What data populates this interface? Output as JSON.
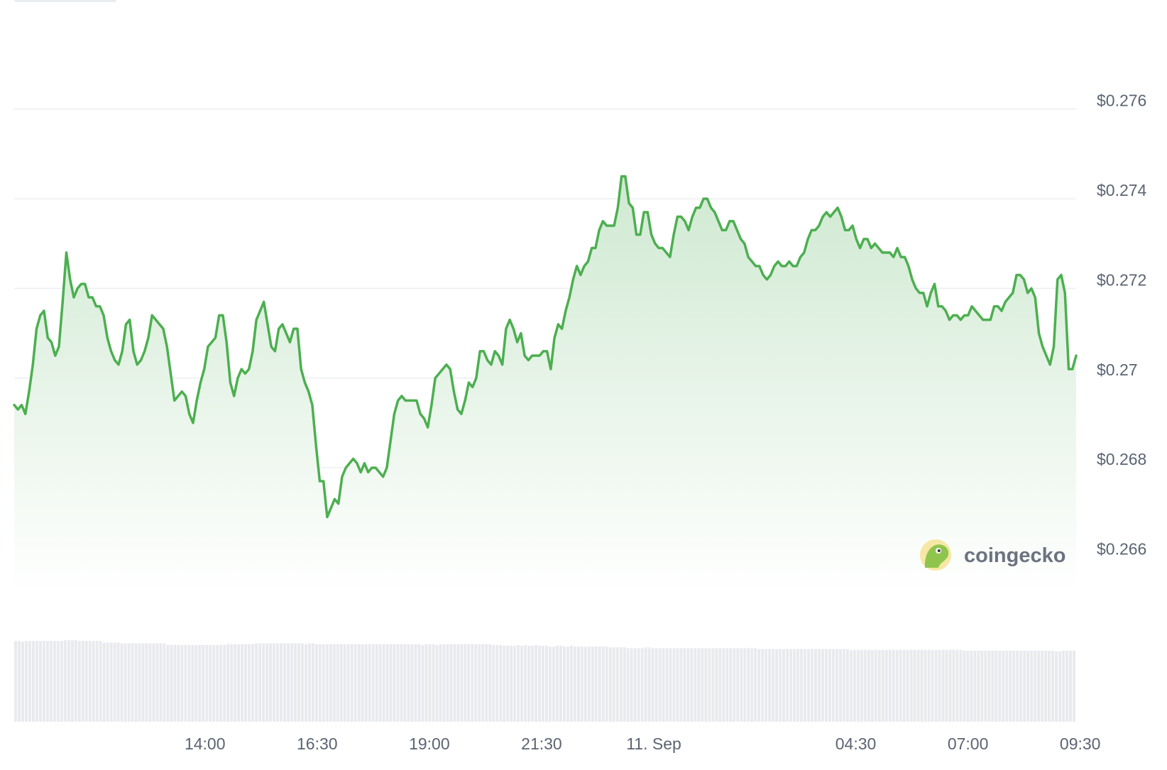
{
  "chart_data": {
    "type": "area",
    "title": "",
    "xlabel": "",
    "ylabel": "",
    "ylim": [
      0.2652,
      0.2778
    ],
    "y_ticks": [
      {
        "value": 0.276,
        "label": "$0.276"
      },
      {
        "value": 0.274,
        "label": "$0.274"
      },
      {
        "value": 0.272,
        "label": "$0.272"
      },
      {
        "value": 0.27,
        "label": "$0.27"
      },
      {
        "value": 0.268,
        "label": "$0.268"
      },
      {
        "value": 0.266,
        "label": "$0.266"
      }
    ],
    "x_ticks": [
      {
        "t": 14.0,
        "label": "14:00"
      },
      {
        "t": 16.5,
        "label": "16:30"
      },
      {
        "t": 19.0,
        "label": "19:00"
      },
      {
        "t": 21.5,
        "label": "21:30"
      },
      {
        "t": 24.0,
        "label": "11. Sep"
      },
      {
        "t": 28.5,
        "label": "04:30"
      },
      {
        "t": 31.0,
        "label": "07:00"
      },
      {
        "t": 33.5,
        "label": "09:30"
      }
    ],
    "x_range_hours": [
      9.75,
      33.41
    ],
    "grid": true,
    "legend": "none",
    "colors": {
      "line": "#4caf50",
      "fill_top": "#cfe9d1",
      "fill_bottom": "#ffffff",
      "grid": "#eceef1",
      "volume": "#e8eaed"
    },
    "series": [
      {
        "values": [
          0.2694,
          0.2693,
          0.2694,
          0.2692,
          0.2697,
          0.2703,
          0.2711,
          0.2714,
          0.2715,
          0.2709,
          0.2708,
          0.2705,
          0.2707,
          0.2717,
          0.2728,
          0.2722,
          0.2718,
          0.272,
          0.2721,
          0.2721,
          0.2718,
          0.2718,
          0.2716,
          0.2716,
          0.2714,
          0.2709,
          0.2706,
          0.2704,
          0.2703,
          0.2706,
          0.2712,
          0.2713,
          0.2706,
          0.2703,
          0.2704,
          0.2706,
          0.2709,
          0.2714,
          0.2713,
          0.2712,
          0.2711,
          0.2707,
          0.2701,
          0.2695,
          0.2696,
          0.2697,
          0.2696,
          0.2692,
          0.269,
          0.2695,
          0.2699,
          0.2702,
          0.2707,
          0.2708,
          0.2709,
          0.2714,
          0.2714,
          0.2708,
          0.2699,
          0.2696,
          0.27,
          0.2702,
          0.2701,
          0.2702,
          0.2706,
          0.2713,
          0.2715,
          0.2717,
          0.2712,
          0.2707,
          0.2706,
          0.2711,
          0.2712,
          0.271,
          0.2708,
          0.2711,
          0.2711,
          0.2702,
          0.2699,
          0.2697,
          0.2694,
          0.2685,
          0.2677,
          0.2677,
          0.2669,
          0.2671,
          0.2673,
          0.2672,
          0.2678,
          0.268,
          0.2681,
          0.2682,
          0.2681,
          0.2679,
          0.2681,
          0.2679,
          0.268,
          0.268,
          0.2679,
          0.2678,
          0.268,
          0.2686,
          0.2692,
          0.2695,
          0.2696,
          0.2695,
          0.2695,
          0.2695,
          0.2695,
          0.2692,
          0.2691,
          0.2689,
          0.2694,
          0.27,
          0.2701,
          0.2702,
          0.2703,
          0.2702,
          0.2697,
          0.2693,
          0.2692,
          0.2695,
          0.2699,
          0.2698,
          0.27,
          0.2706,
          0.2706,
          0.2704,
          0.2703,
          0.2706,
          0.2705,
          0.2703,
          0.2711,
          0.2713,
          0.2711,
          0.2708,
          0.271,
          0.2705,
          0.2704,
          0.2705,
          0.2705,
          0.2705,
          0.2706,
          0.2706,
          0.2702,
          0.2709,
          0.2712,
          0.2711,
          0.2715,
          0.2718,
          0.2722,
          0.2725,
          0.2723,
          0.2725,
          0.2726,
          0.2729,
          0.2729,
          0.2733,
          0.2735,
          0.2734,
          0.2734,
          0.2734,
          0.2738,
          0.2745,
          0.2745,
          0.2739,
          0.2738,
          0.2732,
          0.2732,
          0.2737,
          0.2737,
          0.2732,
          0.273,
          0.2729,
          0.2729,
          0.2728,
          0.2727,
          0.2732,
          0.2736,
          0.2736,
          0.2735,
          0.2733,
          0.2736,
          0.2738,
          0.2738,
          0.274,
          0.274,
          0.2738,
          0.2737,
          0.2735,
          0.2733,
          0.2733,
          0.2735,
          0.2735,
          0.2733,
          0.2731,
          0.273,
          0.2727,
          0.2726,
          0.2725,
          0.2725,
          0.2723,
          0.2722,
          0.2723,
          0.2725,
          0.2726,
          0.2725,
          0.2725,
          0.2726,
          0.2725,
          0.2725,
          0.2727,
          0.2728,
          0.2731,
          0.2733,
          0.2733,
          0.2734,
          0.2736,
          0.2737,
          0.2736,
          0.2737,
          0.2738,
          0.2736,
          0.2733,
          0.2733,
          0.2734,
          0.2731,
          0.2729,
          0.2731,
          0.2731,
          0.2729,
          0.273,
          0.2729,
          0.2728,
          0.2728,
          0.2728,
          0.2727,
          0.2729,
          0.2727,
          0.2727,
          0.2725,
          0.2722,
          0.272,
          0.2719,
          0.2719,
          0.2716,
          0.2719,
          0.2721,
          0.2716,
          0.2716,
          0.2715,
          0.2713,
          0.2714,
          0.2714,
          0.2713,
          0.2714,
          0.2714,
          0.2716,
          0.2715,
          0.2714,
          0.2713,
          0.2713,
          0.2713,
          0.2716,
          0.2716,
          0.2715,
          0.2717,
          0.2718,
          0.2719,
          0.2723,
          0.2723,
          0.2722,
          0.2719,
          0.272,
          0.2718,
          0.271,
          0.2707,
          0.2705,
          0.2703,
          0.2707,
          0.2722,
          0.2723,
          0.2719,
          0.2702,
          0.2702,
          0.2705
        ]
      }
    ],
    "volume": {
      "values": [
        100,
        100,
        99,
        100,
        100,
        100,
        100,
        100,
        100,
        100,
        100,
        100,
        100,
        100,
        101,
        101,
        101,
        101,
        100,
        100,
        100,
        100,
        100,
        100,
        100,
        98,
        98,
        98,
        98,
        98,
        97,
        97,
        97,
        97,
        97,
        97,
        97,
        97,
        97,
        97,
        97,
        97,
        97,
        95,
        95,
        95,
        95,
        95,
        95,
        95,
        95,
        95,
        95,
        95,
        95,
        95,
        95,
        95,
        95,
        95,
        96,
        96,
        96,
        96,
        96,
        96,
        96,
        96,
        97,
        97,
        97,
        97,
        97,
        97,
        97,
        97,
        97,
        97,
        97,
        97,
        97,
        97,
        96,
        97,
        97,
        96,
        96,
        96,
        96,
        96,
        96,
        96,
        96,
        96,
        96,
        96,
        96,
        96,
        96,
        96,
        96,
        96,
        96,
        96,
        96,
        96,
        96,
        96,
        96,
        96,
        96,
        96,
        96,
        96,
        96,
        95,
        96,
        96,
        96,
        95,
        96,
        96,
        96,
        96,
        96,
        96,
        96,
        96,
        96,
        96,
        96,
        96,
        96,
        96,
        96,
        95,
        95,
        95,
        94,
        94,
        94,
        94,
        95,
        94,
        95,
        94,
        94,
        95,
        94,
        94,
        94,
        93,
        93,
        94,
        94,
        93,
        93,
        94,
        93,
        93,
        93,
        93,
        93,
        93,
        93,
        93,
        93,
        93,
        92,
        92,
        92,
        92,
        92,
        91,
        91,
        91,
        91,
        91,
        92,
        92,
        91,
        91,
        91,
        91,
        91,
        91,
        91,
        91,
        91,
        91,
        91,
        91,
        91,
        91,
        91,
        91,
        91,
        91,
        91,
        91,
        91,
        91,
        91,
        91,
        91,
        91,
        91,
        91,
        91,
        91,
        90,
        90,
        90,
        90,
        90,
        90,
        90,
        90,
        90,
        90,
        90,
        90,
        90,
        90,
        90,
        90,
        90,
        90,
        90,
        90,
        90,
        90,
        90,
        90,
        90,
        90,
        89,
        89,
        89,
        89,
        89,
        89,
        89,
        89,
        89,
        89,
        89,
        89,
        89,
        89,
        89,
        89,
        89,
        89,
        89,
        89,
        89,
        89,
        89,
        89,
        89,
        89,
        89,
        89,
        89,
        89,
        89,
        89,
        88,
        88,
        88,
        88,
        88,
        88,
        88,
        88,
        88,
        88,
        88,
        88,
        88,
        88,
        88,
        88,
        88,
        88,
        88,
        88,
        88,
        88,
        88,
        88,
        88,
        88,
        87,
        87,
        88,
        88,
        88,
        88
      ]
    }
  },
  "watermark": {
    "brand_text": "coingecko",
    "icon": "gecko-logo-icon"
  }
}
